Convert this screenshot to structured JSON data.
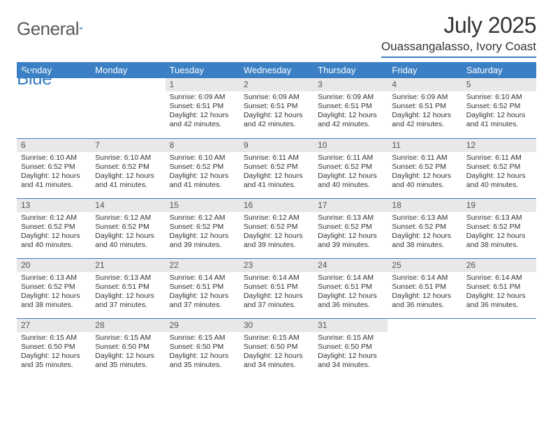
{
  "logo": {
    "text1": "General",
    "text2": "Blue"
  },
  "title": "July 2025",
  "location": "Ouassangalasso, Ivory Coast",
  "colors": {
    "accent": "#3b7fc4",
    "header_bg": "#3b7fc4",
    "header_text": "#ffffff",
    "daynum_bg": "#e8e8e8",
    "text": "#333333",
    "logo_gray": "#5a5a5a"
  },
  "weekdays": [
    "Sunday",
    "Monday",
    "Tuesday",
    "Wednesday",
    "Thursday",
    "Friday",
    "Saturday"
  ],
  "weeks": [
    [
      {
        "empty": true
      },
      {
        "empty": true
      },
      {
        "day": "1",
        "sunrise": "6:09 AM",
        "sunset": "6:51 PM",
        "daylight": "12 hours and 42 minutes."
      },
      {
        "day": "2",
        "sunrise": "6:09 AM",
        "sunset": "6:51 PM",
        "daylight": "12 hours and 42 minutes."
      },
      {
        "day": "3",
        "sunrise": "6:09 AM",
        "sunset": "6:51 PM",
        "daylight": "12 hours and 42 minutes."
      },
      {
        "day": "4",
        "sunrise": "6:09 AM",
        "sunset": "6:51 PM",
        "daylight": "12 hours and 42 minutes."
      },
      {
        "day": "5",
        "sunrise": "6:10 AM",
        "sunset": "6:52 PM",
        "daylight": "12 hours and 41 minutes."
      }
    ],
    [
      {
        "day": "6",
        "sunrise": "6:10 AM",
        "sunset": "6:52 PM",
        "daylight": "12 hours and 41 minutes."
      },
      {
        "day": "7",
        "sunrise": "6:10 AM",
        "sunset": "6:52 PM",
        "daylight": "12 hours and 41 minutes."
      },
      {
        "day": "8",
        "sunrise": "6:10 AM",
        "sunset": "6:52 PM",
        "daylight": "12 hours and 41 minutes."
      },
      {
        "day": "9",
        "sunrise": "6:11 AM",
        "sunset": "6:52 PM",
        "daylight": "12 hours and 41 minutes."
      },
      {
        "day": "10",
        "sunrise": "6:11 AM",
        "sunset": "6:52 PM",
        "daylight": "12 hours and 40 minutes."
      },
      {
        "day": "11",
        "sunrise": "6:11 AM",
        "sunset": "6:52 PM",
        "daylight": "12 hours and 40 minutes."
      },
      {
        "day": "12",
        "sunrise": "6:11 AM",
        "sunset": "6:52 PM",
        "daylight": "12 hours and 40 minutes."
      }
    ],
    [
      {
        "day": "13",
        "sunrise": "6:12 AM",
        "sunset": "6:52 PM",
        "daylight": "12 hours and 40 minutes."
      },
      {
        "day": "14",
        "sunrise": "6:12 AM",
        "sunset": "6:52 PM",
        "daylight": "12 hours and 40 minutes."
      },
      {
        "day": "15",
        "sunrise": "6:12 AM",
        "sunset": "6:52 PM",
        "daylight": "12 hours and 39 minutes."
      },
      {
        "day": "16",
        "sunrise": "6:12 AM",
        "sunset": "6:52 PM",
        "daylight": "12 hours and 39 minutes."
      },
      {
        "day": "17",
        "sunrise": "6:13 AM",
        "sunset": "6:52 PM",
        "daylight": "12 hours and 39 minutes."
      },
      {
        "day": "18",
        "sunrise": "6:13 AM",
        "sunset": "6:52 PM",
        "daylight": "12 hours and 38 minutes."
      },
      {
        "day": "19",
        "sunrise": "6:13 AM",
        "sunset": "6:52 PM",
        "daylight": "12 hours and 38 minutes."
      }
    ],
    [
      {
        "day": "20",
        "sunrise": "6:13 AM",
        "sunset": "6:52 PM",
        "daylight": "12 hours and 38 minutes."
      },
      {
        "day": "21",
        "sunrise": "6:13 AM",
        "sunset": "6:51 PM",
        "daylight": "12 hours and 37 minutes."
      },
      {
        "day": "22",
        "sunrise": "6:14 AM",
        "sunset": "6:51 PM",
        "daylight": "12 hours and 37 minutes."
      },
      {
        "day": "23",
        "sunrise": "6:14 AM",
        "sunset": "6:51 PM",
        "daylight": "12 hours and 37 minutes."
      },
      {
        "day": "24",
        "sunrise": "6:14 AM",
        "sunset": "6:51 PM",
        "daylight": "12 hours and 36 minutes."
      },
      {
        "day": "25",
        "sunrise": "6:14 AM",
        "sunset": "6:51 PM",
        "daylight": "12 hours and 36 minutes."
      },
      {
        "day": "26",
        "sunrise": "6:14 AM",
        "sunset": "6:51 PM",
        "daylight": "12 hours and 36 minutes."
      }
    ],
    [
      {
        "day": "27",
        "sunrise": "6:15 AM",
        "sunset": "6:50 PM",
        "daylight": "12 hours and 35 minutes."
      },
      {
        "day": "28",
        "sunrise": "6:15 AM",
        "sunset": "6:50 PM",
        "daylight": "12 hours and 35 minutes."
      },
      {
        "day": "29",
        "sunrise": "6:15 AM",
        "sunset": "6:50 PM",
        "daylight": "12 hours and 35 minutes."
      },
      {
        "day": "30",
        "sunrise": "6:15 AM",
        "sunset": "6:50 PM",
        "daylight": "12 hours and 34 minutes."
      },
      {
        "day": "31",
        "sunrise": "6:15 AM",
        "sunset": "6:50 PM",
        "daylight": "12 hours and 34 minutes."
      },
      {
        "empty": true
      },
      {
        "empty": true
      }
    ]
  ],
  "labels": {
    "sunrise": "Sunrise:",
    "sunset": "Sunset:",
    "daylight": "Daylight:"
  }
}
